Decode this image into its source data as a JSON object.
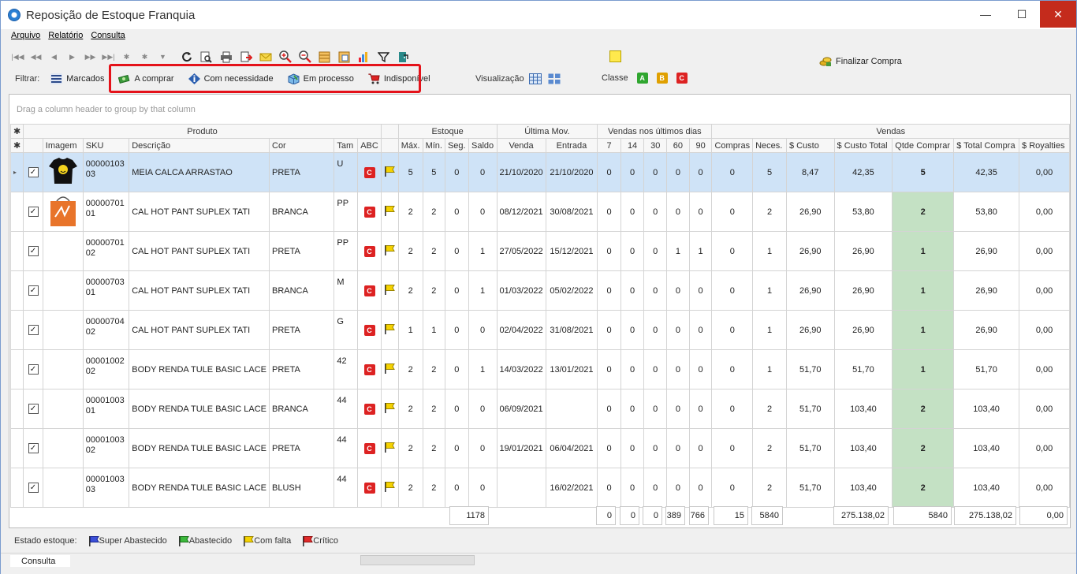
{
  "window": {
    "title": "Reposição de Estoque Franquia",
    "minimize": "—",
    "maximize": "☐",
    "close": "✕"
  },
  "menu": [
    "Arquivo",
    "Relatório",
    "Consulta"
  ],
  "nav": [
    "|◀◀",
    "◀◀",
    "◀",
    "▶",
    "▶▶",
    "▶▶|",
    "✱",
    "✱",
    "▼"
  ],
  "filters": {
    "label": "Filtrar:",
    "marcados": "Marcados",
    "a_comprar": "A comprar",
    "com_necessidade": "Com necessidade",
    "em_processo": "Em processo",
    "indisponivel": "Indisponível"
  },
  "visualizacao": "Visualização",
  "classe": {
    "label": "Classe",
    "a": "A",
    "b": "B",
    "c": "C"
  },
  "finalizar": "Finalizar Compra",
  "group_hint": "Drag a column header to group by that column",
  "bands": {
    "produto": "Produto",
    "estoque": "Estoque",
    "ultima_mov": "Última Mov.",
    "vendas_dias": "Vendas nos últimos dias",
    "vendas": "Vendas"
  },
  "columns": {
    "imagem": "Imagem",
    "sku": "SKU",
    "descricao": "Descrição",
    "cor": "Cor",
    "tam": "Tam",
    "abc": "ABC",
    "max": "Máx.",
    "min": "Mín.",
    "seg": "Seg.",
    "saldo": "Saldo",
    "venda": "Venda",
    "entrada": "Entrada",
    "d7": "7",
    "d14": "14",
    "d30": "30",
    "d60": "60",
    "d90": "90",
    "compras": "Compras",
    "neces": "Neces.",
    "custo": "$ Custo",
    "custo_total": "$ Custo Total",
    "qtde": "Qtde Comprar",
    "total_compra": "$ Total Compra",
    "royalties": "$ Royalties"
  },
  "rows": [
    {
      "sku": "0000010303",
      "desc": "MEIA CALCA ARRASTAO",
      "cor": "PRETA",
      "tam": "U",
      "abc": "C",
      "max": "5",
      "min": "5",
      "seg": "0",
      "saldo": "0",
      "venda": "21/10/2020",
      "entrada": "21/10/2020",
      "d7": "0",
      "d14": "0",
      "d30": "0",
      "d60": "0",
      "d90": "0",
      "compras": "0",
      "neces": "5",
      "custo": "8,47",
      "custo_total": "42,35",
      "qtde": "5",
      "total": "42,35",
      "roy": "0,00",
      "img": "shirt",
      "sel": true
    },
    {
      "sku": "0000070101",
      "desc": "CAL HOT PANT SUPLEX TATI",
      "cor": "BRANCA",
      "tam": "PP",
      "abc": "C",
      "max": "2",
      "min": "2",
      "seg": "0",
      "saldo": "0",
      "venda": "08/12/2021",
      "entrada": "30/08/2021",
      "d7": "0",
      "d14": "0",
      "d30": "0",
      "d60": "0",
      "d90": "0",
      "compras": "0",
      "neces": "2",
      "custo": "26,90",
      "custo_total": "53,80",
      "qtde": "2",
      "total": "53,80",
      "roy": "0,00",
      "img": "bag"
    },
    {
      "sku": "0000070102",
      "desc": "CAL HOT PANT SUPLEX TATI",
      "cor": "PRETA",
      "tam": "PP",
      "abc": "C",
      "max": "2",
      "min": "2",
      "seg": "0",
      "saldo": "1",
      "venda": "27/05/2022",
      "entrada": "15/12/2021",
      "d7": "0",
      "d14": "0",
      "d30": "0",
      "d60": "1",
      "d90": "1",
      "compras": "0",
      "neces": "1",
      "custo": "26,90",
      "custo_total": "26,90",
      "qtde": "1",
      "total": "26,90",
      "roy": "0,00"
    },
    {
      "sku": "0000070301",
      "desc": "CAL HOT PANT SUPLEX TATI",
      "cor": "BRANCA",
      "tam": "M",
      "abc": "C",
      "max": "2",
      "min": "2",
      "seg": "0",
      "saldo": "1",
      "venda": "01/03/2022",
      "entrada": "05/02/2022",
      "d7": "0",
      "d14": "0",
      "d30": "0",
      "d60": "0",
      "d90": "0",
      "compras": "0",
      "neces": "1",
      "custo": "26,90",
      "custo_total": "26,90",
      "qtde": "1",
      "total": "26,90",
      "roy": "0,00"
    },
    {
      "sku": "0000070402",
      "desc": "CAL HOT PANT SUPLEX TATI",
      "cor": "PRETA",
      "tam": "G",
      "abc": "C",
      "max": "1",
      "min": "1",
      "seg": "0",
      "saldo": "0",
      "venda": "02/04/2022",
      "entrada": "31/08/2021",
      "d7": "0",
      "d14": "0",
      "d30": "0",
      "d60": "0",
      "d90": "0",
      "compras": "0",
      "neces": "1",
      "custo": "26,90",
      "custo_total": "26,90",
      "qtde": "1",
      "total": "26,90",
      "roy": "0,00"
    },
    {
      "sku": "0000100202",
      "desc": "BODY RENDA TULE BASIC LACE",
      "cor": "PRETA",
      "tam": "42",
      "abc": "C",
      "max": "2",
      "min": "2",
      "seg": "0",
      "saldo": "1",
      "venda": "14/03/2022",
      "entrada": "13/01/2021",
      "d7": "0",
      "d14": "0",
      "d30": "0",
      "d60": "0",
      "d90": "0",
      "compras": "0",
      "neces": "1",
      "custo": "51,70",
      "custo_total": "51,70",
      "qtde": "1",
      "total": "51,70",
      "roy": "0,00"
    },
    {
      "sku": "0000100301",
      "desc": "BODY RENDA TULE BASIC LACE",
      "cor": "BRANCA",
      "tam": "44",
      "abc": "C",
      "max": "2",
      "min": "2",
      "seg": "0",
      "saldo": "0",
      "venda": "06/09/2021",
      "entrada": "",
      "d7": "0",
      "d14": "0",
      "d30": "0",
      "d60": "0",
      "d90": "0",
      "compras": "0",
      "neces": "2",
      "custo": "51,70",
      "custo_total": "103,40",
      "qtde": "2",
      "total": "103,40",
      "roy": "0,00"
    },
    {
      "sku": "0000100302",
      "desc": "BODY RENDA TULE BASIC LACE",
      "cor": "PRETA",
      "tam": "44",
      "abc": "C",
      "max": "2",
      "min": "2",
      "seg": "0",
      "saldo": "0",
      "venda": "19/01/2021",
      "entrada": "06/04/2021",
      "d7": "0",
      "d14": "0",
      "d30": "0",
      "d60": "0",
      "d90": "0",
      "compras": "0",
      "neces": "2",
      "custo": "51,70",
      "custo_total": "103,40",
      "qtde": "2",
      "total": "103,40",
      "roy": "0,00"
    },
    {
      "sku": "0000100303",
      "desc": "BODY RENDA TULE BASIC LACE",
      "cor": "BLUSH",
      "tam": "44",
      "abc": "C",
      "max": "2",
      "min": "2",
      "seg": "0",
      "saldo": "0",
      "venda": "",
      "entrada": "16/02/2021",
      "d7": "0",
      "d14": "0",
      "d30": "0",
      "d60": "0",
      "d90": "0",
      "compras": "0",
      "neces": "2",
      "custo": "51,70",
      "custo_total": "103,40",
      "qtde": "2",
      "total": "103,40",
      "roy": "0,00"
    }
  ],
  "footer": {
    "saldo": "1178",
    "d7": "0",
    "d14": "0",
    "d30": "0",
    "d60": "389",
    "d90": "766",
    "compras": "15",
    "neces": "5840",
    "custo_total": "275.138,02",
    "qtde": "5840",
    "total_compra": "275.138,02",
    "royalties": "0,00"
  },
  "legend": {
    "label": "Estado estoque:",
    "super": "Super Abastecido",
    "abastecido": "Abastecido",
    "falta": "Com falta",
    "critico": "Crítico"
  },
  "status": {
    "tab": "Consulta"
  },
  "colors": {
    "selected_row": "#cfe3f7",
    "qtde_bg": "#c4e1c4",
    "highlight_box": "#e4121a",
    "abc_red": "#dd2222"
  },
  "check_mark": "✓"
}
